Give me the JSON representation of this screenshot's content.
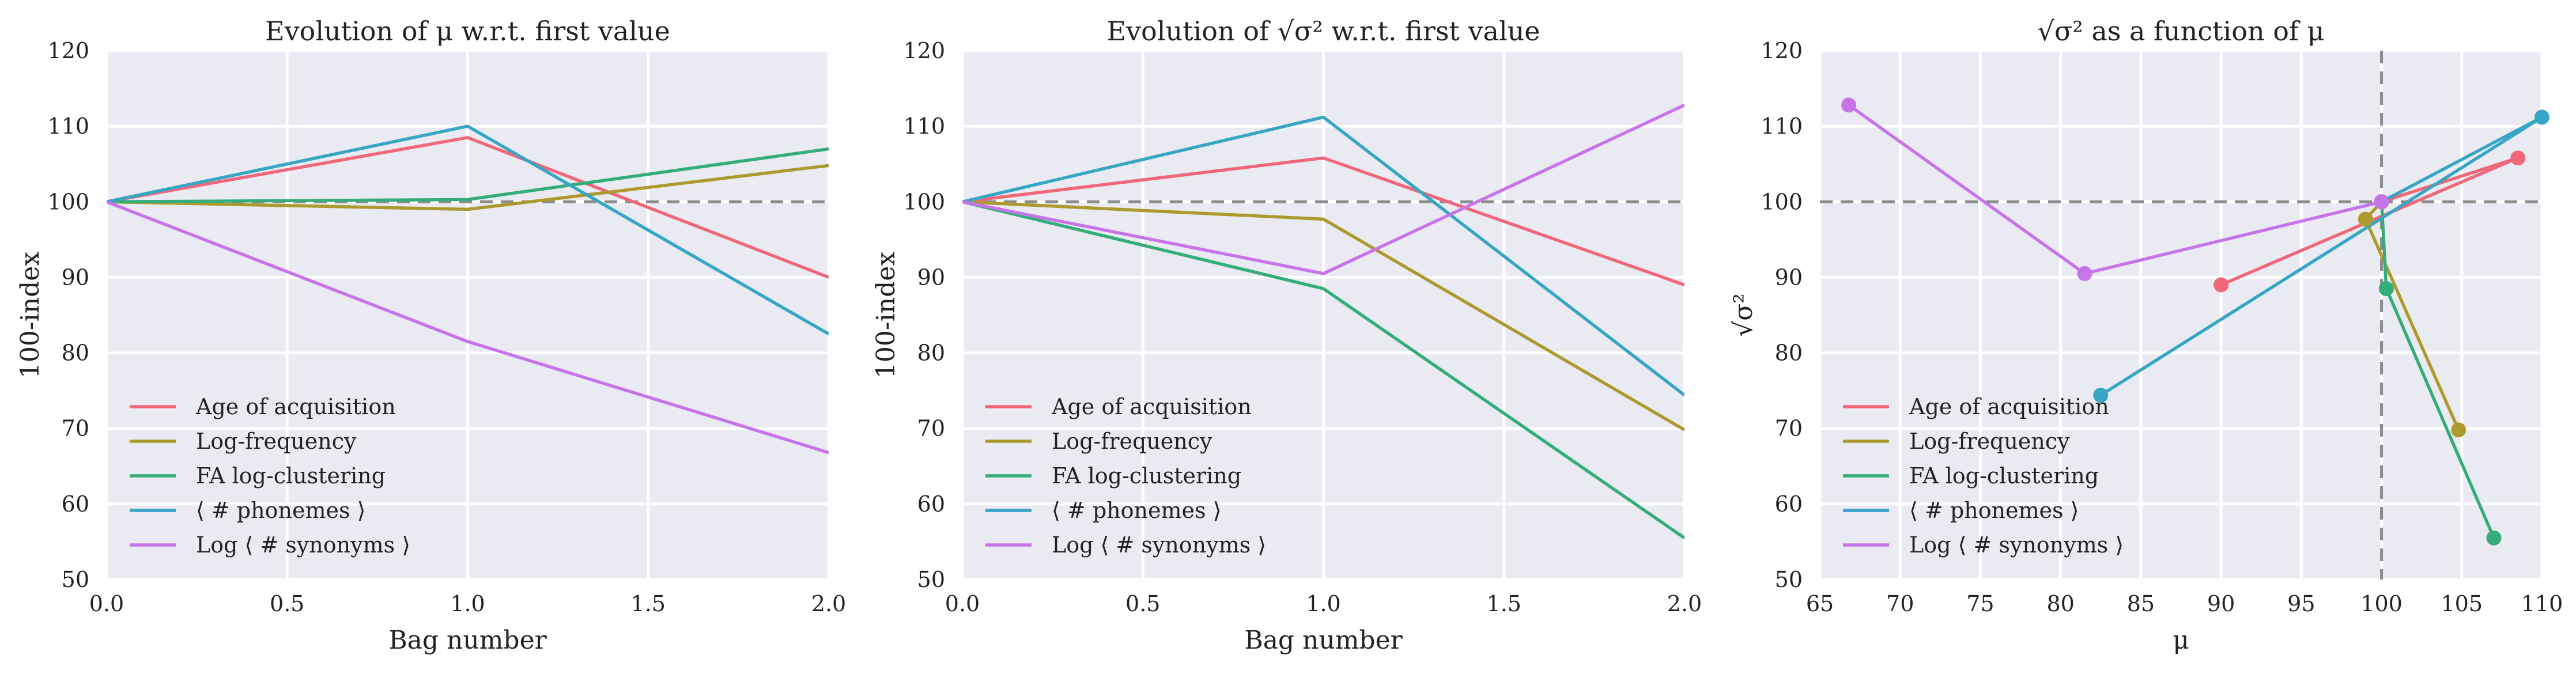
{
  "chart_data": [
    {
      "type": "line",
      "title": "Evolution of μ w.r.t. first value",
      "xlabel": "Bag number",
      "ylabel": "100-index",
      "xlim": [
        0,
        2
      ],
      "ylim": [
        50,
        120
      ],
      "xticks": [
        "0.0",
        "0.5",
        "1.0",
        "1.5",
        "2.0"
      ],
      "yticks": [
        "50",
        "60",
        "70",
        "80",
        "90",
        "100",
        "110",
        "120"
      ],
      "grid": true,
      "reference_line": {
        "axis": "y",
        "value": 100,
        "style": "dashed"
      },
      "legend_position": "lower-left",
      "x": [
        0,
        1,
        2
      ],
      "series": [
        {
          "name": "Age of acquisition",
          "values": [
            100,
            108.5,
            90
          ]
        },
        {
          "name": "Log-frequency",
          "values": [
            100,
            99,
            104.8
          ]
        },
        {
          "name": "FA log-clustering",
          "values": [
            100,
            100.3,
            107
          ]
        },
        {
          "name": "⟨ # phonemes ⟩",
          "values": [
            100,
            110,
            82.5
          ]
        },
        {
          "name": "Log ⟨ # synonyms ⟩",
          "values": [
            100,
            81.5,
            66.8
          ]
        }
      ]
    },
    {
      "type": "line",
      "title": "Evolution of √σ² w.r.t. first value",
      "xlabel": "Bag number",
      "ylabel": "100-index",
      "xlim": [
        0,
        2
      ],
      "ylim": [
        50,
        120
      ],
      "xticks": [
        "0.0",
        "0.5",
        "1.0",
        "1.5",
        "2.0"
      ],
      "yticks": [
        "50",
        "60",
        "70",
        "80",
        "90",
        "100",
        "110",
        "120"
      ],
      "grid": true,
      "reference_line": {
        "axis": "y",
        "value": 100,
        "style": "dashed"
      },
      "legend_position": "lower-left",
      "x": [
        0,
        1,
        2
      ],
      "series": [
        {
          "name": "Age of acquisition",
          "values": [
            100,
            105.8,
            89
          ]
        },
        {
          "name": "Log-frequency",
          "values": [
            100,
            97.7,
            69.8
          ]
        },
        {
          "name": "FA log-clustering",
          "values": [
            100,
            88.5,
            55.5
          ]
        },
        {
          "name": "⟨ # phonemes ⟩",
          "values": [
            100,
            111.2,
            74.4
          ]
        },
        {
          "name": "Log ⟨ # synonyms ⟩",
          "values": [
            100,
            90.5,
            112.8
          ]
        }
      ]
    },
    {
      "type": "line",
      "title": "√σ² as a function of μ",
      "xlabel": "μ",
      "ylabel": "√σ²",
      "xlim": [
        65,
        110
      ],
      "ylim": [
        50,
        120
      ],
      "xticks": [
        "65",
        "70",
        "75",
        "80",
        "85",
        "90",
        "95",
        "100",
        "105",
        "110"
      ],
      "yticks": [
        "50",
        "60",
        "70",
        "80",
        "90",
        "100",
        "110",
        "120"
      ],
      "grid": true,
      "reference_lines": [
        {
          "axis": "y",
          "value": 100,
          "style": "dashed"
        },
        {
          "axis": "x",
          "value": 100,
          "style": "dashed"
        }
      ],
      "legend_position": "lower-left",
      "markers": true,
      "series": [
        {
          "name": "Age of acquisition",
          "x": [
            100,
            108.5,
            90
          ],
          "y": [
            100,
            105.8,
            89
          ]
        },
        {
          "name": "Log-frequency",
          "x": [
            100,
            99,
            104.8
          ],
          "y": [
            100,
            97.7,
            69.8
          ]
        },
        {
          "name": "FA log-clustering",
          "x": [
            100,
            100.3,
            107
          ],
          "y": [
            100,
            88.5,
            55.5
          ]
        },
        {
          "name": "⟨ # phonemes ⟩",
          "x": [
            100,
            110,
            82.5
          ],
          "y": [
            100,
            111.2,
            74.4
          ]
        },
        {
          "name": "Log ⟨ # synonyms ⟩",
          "x": [
            100,
            81.5,
            66.8
          ],
          "y": [
            100,
            90.5,
            112.8
          ]
        }
      ]
    }
  ],
  "colors": {
    "series": [
      "#f0677a",
      "#ad9a2e",
      "#35ad7a",
      "#36a6c4",
      "#c774ea"
    ],
    "plot_background": "#eaeaf2",
    "grid": "#ffffff",
    "reference_line": "#8c8c8c"
  }
}
